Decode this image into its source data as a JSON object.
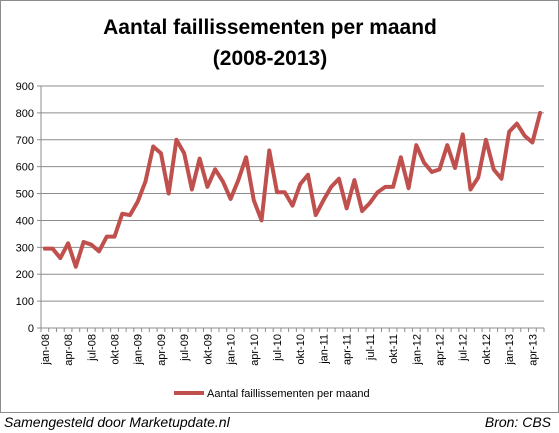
{
  "chart_data": {
    "type": "line",
    "title_lines": [
      "Aantal faillissementen per maand",
      "(2008-2013)"
    ],
    "xlabel": "",
    "ylabel": "",
    "ylim": [
      0,
      900
    ],
    "yticks": [
      0,
      100,
      200,
      300,
      400,
      500,
      600,
      700,
      800,
      900
    ],
    "grid": "horizontal",
    "legend_position": "bottom",
    "x_tick_labels": [
      "jan-08",
      "apr-08",
      "jul-08",
      "okt-08",
      "jan-09",
      "apr-09",
      "jul-09",
      "okt-09",
      "jan-10",
      "apr-10",
      "jul-10",
      "okt-10",
      "jan-11",
      "apr-11",
      "jul-11",
      "okt-11",
      "jan-12",
      "apr-12",
      "jul-12",
      "okt-12",
      "jan-13",
      "apr-13"
    ],
    "x": [
      "jan-08",
      "feb-08",
      "mrt-08",
      "apr-08",
      "mei-08",
      "jun-08",
      "jul-08",
      "aug-08",
      "sep-08",
      "okt-08",
      "nov-08",
      "dec-08",
      "jan-09",
      "feb-09",
      "mrt-09",
      "apr-09",
      "mei-09",
      "jun-09",
      "jul-09",
      "aug-09",
      "sep-09",
      "okt-09",
      "nov-09",
      "dec-09",
      "jan-10",
      "feb-10",
      "mrt-10",
      "apr-10",
      "mei-10",
      "jun-10",
      "jul-10",
      "aug-10",
      "sep-10",
      "okt-10",
      "nov-10",
      "dec-10",
      "jan-11",
      "feb-11",
      "mrt-11",
      "apr-11",
      "mei-11",
      "jun-11",
      "jul-11",
      "aug-11",
      "sep-11",
      "okt-11",
      "nov-11",
      "dec-11",
      "jan-12",
      "feb-12",
      "mrt-12",
      "apr-12",
      "mei-12",
      "jun-12",
      "jul-12",
      "aug-12",
      "sep-12",
      "okt-12",
      "nov-12",
      "dec-12",
      "jan-13",
      "feb-13",
      "mrt-13",
      "apr-13",
      "mei-13"
    ],
    "series": [
      {
        "name": "Aantal faillissementen per maand",
        "color": "#c0504d",
        "values": [
          295,
          295,
          260,
          315,
          228,
          320,
          310,
          285,
          340,
          340,
          425,
          420,
          470,
          545,
          675,
          650,
          500,
          700,
          650,
          515,
          630,
          525,
          590,
          545,
          480,
          550,
          635,
          475,
          400,
          660,
          505,
          505,
          455,
          535,
          570,
          420,
          475,
          525,
          555,
          445,
          550,
          435,
          465,
          505,
          525,
          525,
          635,
          520,
          680,
          615,
          580,
          590,
          680,
          595,
          720,
          515,
          560,
          700,
          590,
          555,
          730,
          760,
          715,
          690,
          800
        ]
      }
    ]
  },
  "footer": {
    "left": "Samengesteld door Marketupdate.nl",
    "right": "Bron: CBS"
  }
}
